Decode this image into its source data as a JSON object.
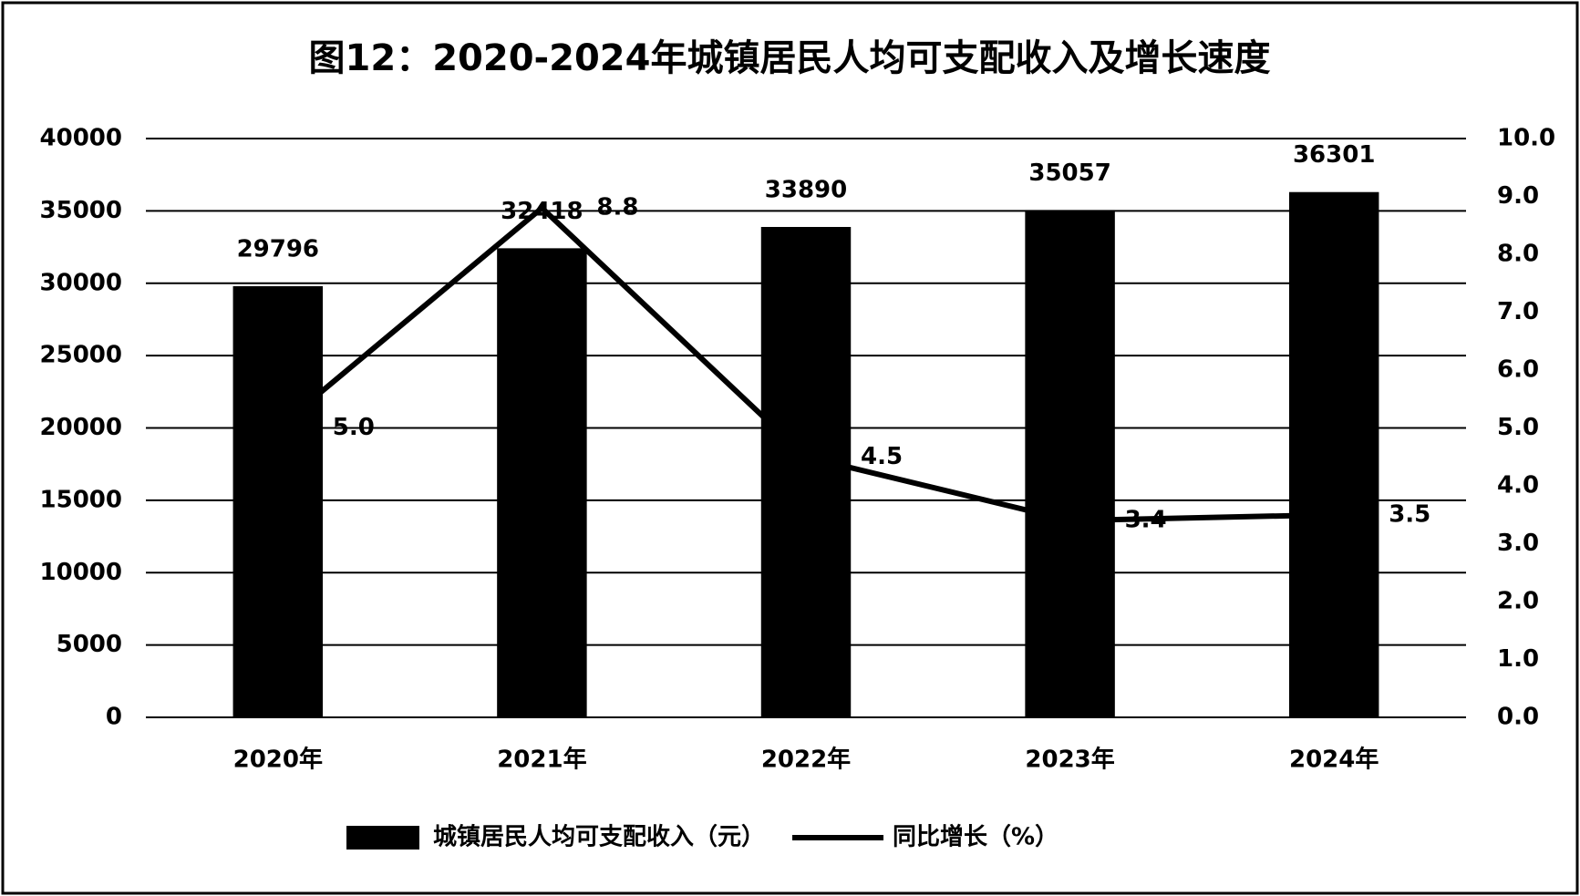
{
  "chart_data": {
    "type": "bar",
    "title": "图12：2020-2024年城镇居民人均可支配收入及增长速度",
    "categories": [
      "2020年",
      "2021年",
      "2022年",
      "2023年",
      "2024年"
    ],
    "series": [
      {
        "name": "城镇居民人均可支配收入（元）",
        "type": "bar",
        "color": "#000000",
        "values": [
          29796,
          32418,
          33890,
          35057,
          36301
        ]
      },
      {
        "name": "同比增长（%）",
        "type": "line",
        "axis": "y2",
        "color": "#000000",
        "values": [
          5.0,
          8.8,
          4.5,
          3.4,
          3.5
        ],
        "value_labels": [
          "5.0",
          "8.8",
          "4.5",
          "3.4",
          "3.5"
        ]
      }
    ],
    "ylim": [
      0,
      40000
    ],
    "yticks": [
      0,
      5000,
      10000,
      15000,
      20000,
      25000,
      30000,
      35000,
      40000
    ],
    "y2lim": [
      0,
      10
    ],
    "y2ticks": [
      {
        "value": 0,
        "label": "0.0"
      },
      {
        "value": 1,
        "label": "1.0"
      },
      {
        "value": 2,
        "label": "2.0"
      },
      {
        "value": 3,
        "label": "3.0"
      },
      {
        "value": 4,
        "label": "4.0"
      },
      {
        "value": 5,
        "label": "5.0"
      },
      {
        "value": 6,
        "label": "6.0"
      },
      {
        "value": 7,
        "label": "7.0"
      },
      {
        "value": 8,
        "label": "8.0"
      },
      {
        "value": 9,
        "label": "9.0"
      },
      {
        "value": 10,
        "label": "10.0"
      }
    ],
    "grid": true
  }
}
